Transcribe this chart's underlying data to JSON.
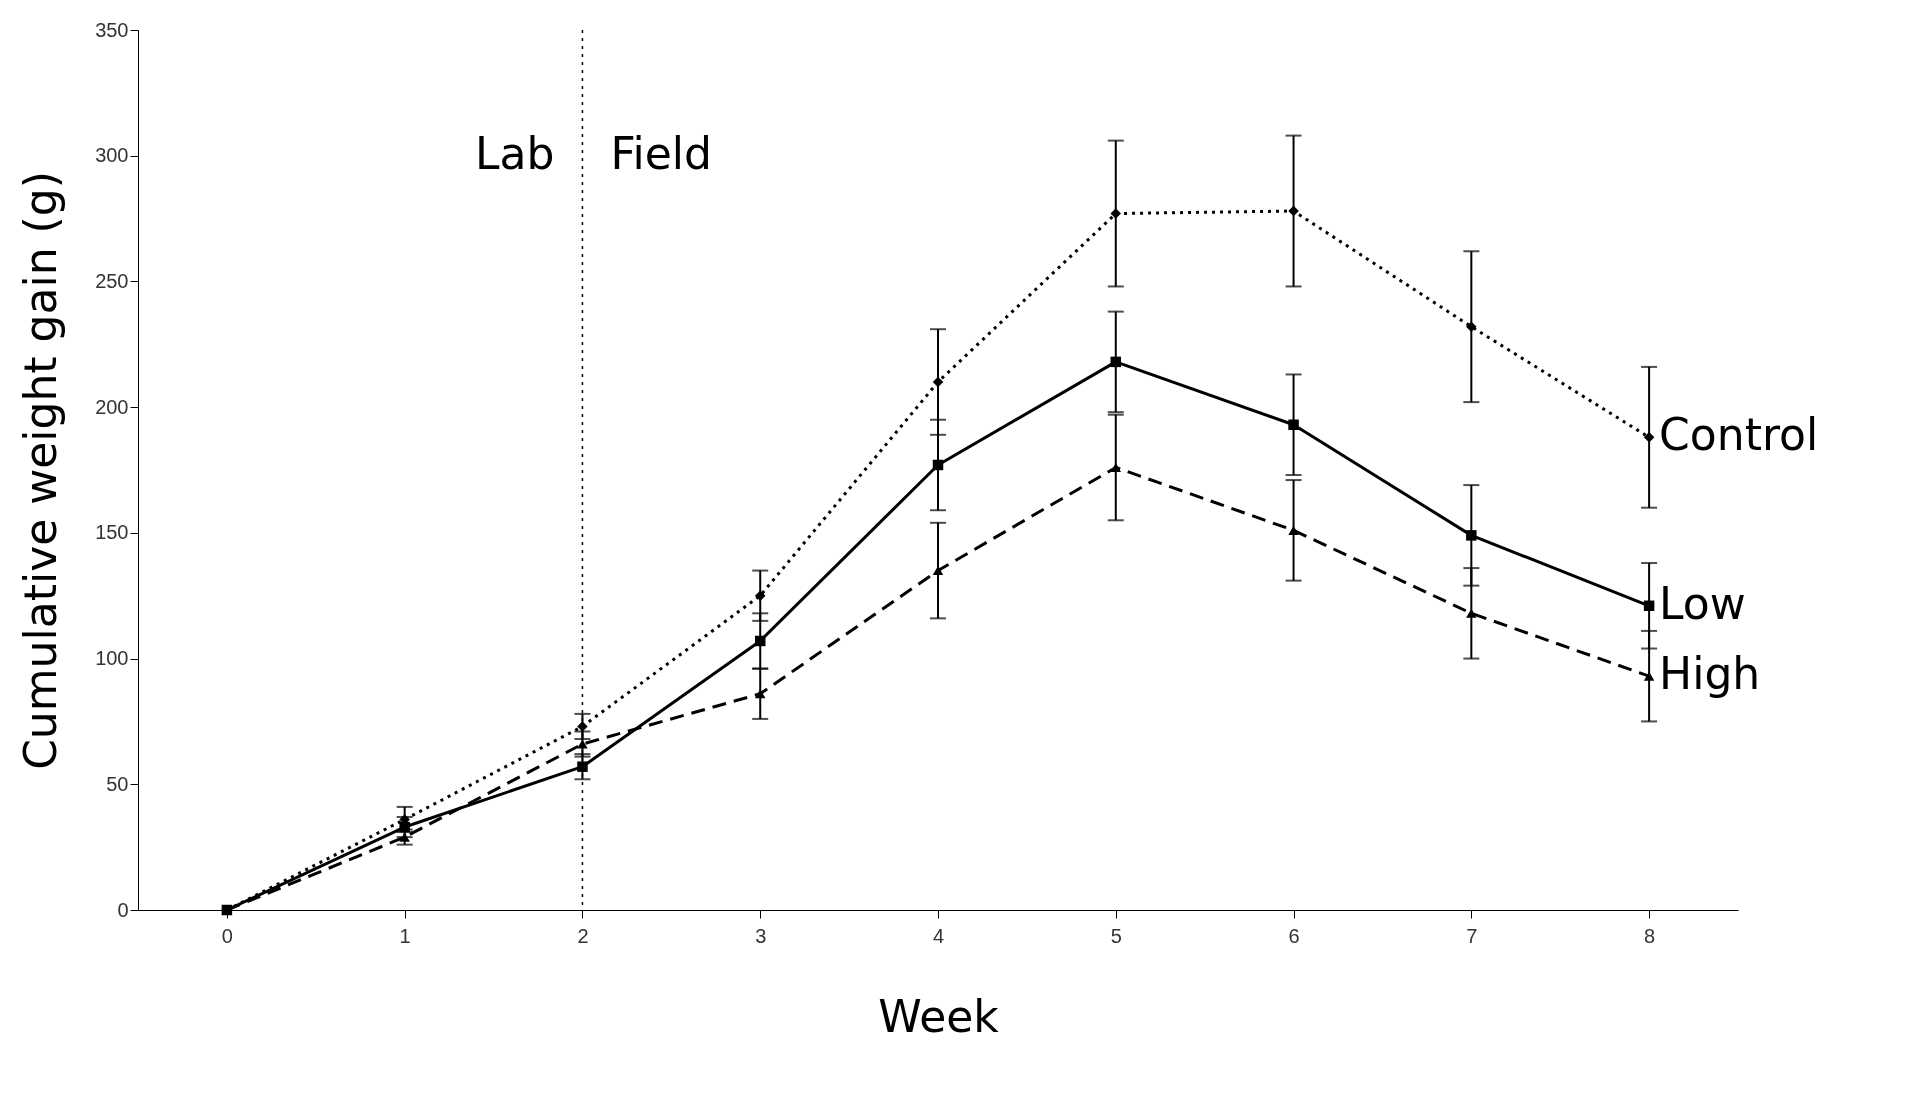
{
  "chart_data": {
    "type": "line",
    "xlabel": "Week",
    "ylabel": "Cumulative weight gain (g)",
    "x": [
      0,
      1,
      2,
      3,
      4,
      5,
      6,
      7,
      8
    ],
    "series": [
      {
        "name": "Control",
        "color": "#000000",
        "line_style": "dotted",
        "marker": "diamond",
        "values": [
          0,
          36,
          73,
          125,
          210,
          277,
          278,
          232,
          188
        ],
        "errors": [
          null,
          5,
          5,
          10,
          21,
          29,
          30,
          30,
          28
        ]
      },
      {
        "name": "Low",
        "color": "#000000",
        "line_style": "solid",
        "marker": "square",
        "values": [
          0,
          33,
          57,
          107,
          177,
          218,
          193,
          149,
          121
        ],
        "errors": [
          null,
          4,
          5,
          11,
          18,
          20,
          20,
          20,
          17
        ]
      },
      {
        "name": "High",
        "color": "#000000",
        "line_style": "dashed",
        "marker": "triangle",
        "values": [
          0,
          29,
          66,
          86,
          135,
          176,
          151,
          118,
          93
        ],
        "errors": [
          null,
          3,
          5,
          10,
          19,
          21,
          20,
          18,
          18
        ]
      }
    ],
    "xlim": [
      -0.5,
      8.5
    ],
    "xticks": [
      0,
      1,
      2,
      3,
      4,
      5,
      6,
      7,
      8
    ],
    "ylim": [
      0,
      350
    ],
    "yticks": [
      0,
      50,
      100,
      150,
      200,
      250,
      300,
      350
    ],
    "ref_lines": [
      {
        "axis": "x",
        "value": 2,
        "color": "#000000",
        "line_style": "dotted"
      }
    ],
    "annotations": [
      "Lab",
      "Field"
    ],
    "grid": false,
    "legend": false
  }
}
